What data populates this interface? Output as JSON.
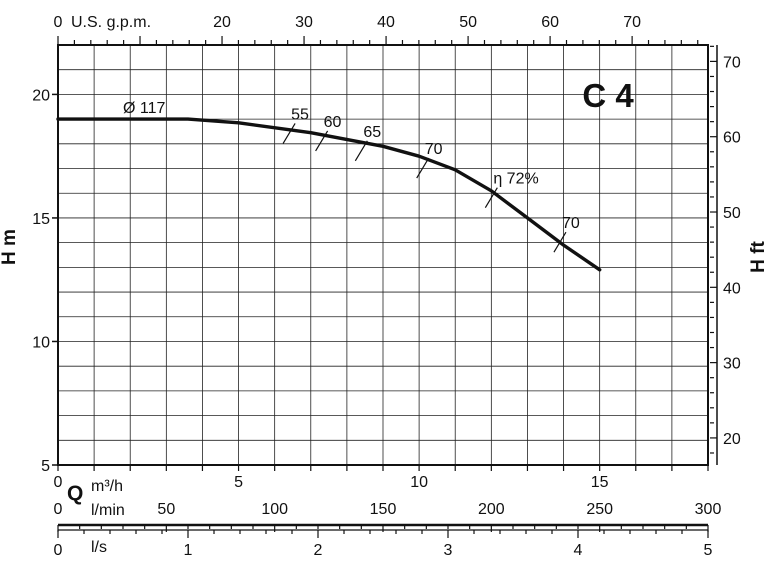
{
  "chart_data": {
    "type": "line",
    "title": "C 4",
    "diameter_label": "Ø  117",
    "ylabel_left": "H m",
    "ylabel_right": "H ft",
    "x_top_label": "U.S. g.p.m.",
    "x_q_symbol": "Q",
    "x_m3h_label": "m³/h",
    "x_lmin_label": "l/min",
    "x_ls_label": "l/s",
    "ylim": [
      5,
      22
    ],
    "xlim_m3h": [
      0,
      18
    ],
    "grid": true,
    "y_ticks_m": [
      5,
      10,
      15,
      20
    ],
    "y_ticks_ft": [
      20,
      30,
      40,
      50,
      60,
      70
    ],
    "x_ticks_m3h": [
      0,
      5,
      10,
      15
    ],
    "x_ticks_gpm": [
      0,
      20,
      30,
      40,
      50,
      60,
      70
    ],
    "x_ticks_lmin": [
      0,
      50,
      100,
      150,
      200,
      250,
      300
    ],
    "x_ticks_ls": [
      0,
      1,
      2,
      3,
      4,
      5
    ],
    "series": [
      {
        "x": [
          0,
          3.6,
          5,
          7,
          9,
          10,
          11,
          12,
          13,
          14,
          15
        ],
        "y": [
          19.0,
          19.0,
          18.85,
          18.45,
          17.9,
          17.5,
          16.95,
          16.1,
          15.0,
          13.9,
          12.9
        ]
      }
    ],
    "efficiency_labels": [
      {
        "text": "55",
        "x": 6.4,
        "y": 18.5
      },
      {
        "text": "60",
        "x": 7.3,
        "y": 18.2
      },
      {
        "text": "65",
        "x": 8.4,
        "y": 17.8
      },
      {
        "text": "70",
        "x": 10.1,
        "y": 17.1
      },
      {
        "text": "η 72%",
        "x": 12.0,
        "y": 15.9
      },
      {
        "text": "70",
        "x": 13.9,
        "y": 14.1
      }
    ]
  }
}
